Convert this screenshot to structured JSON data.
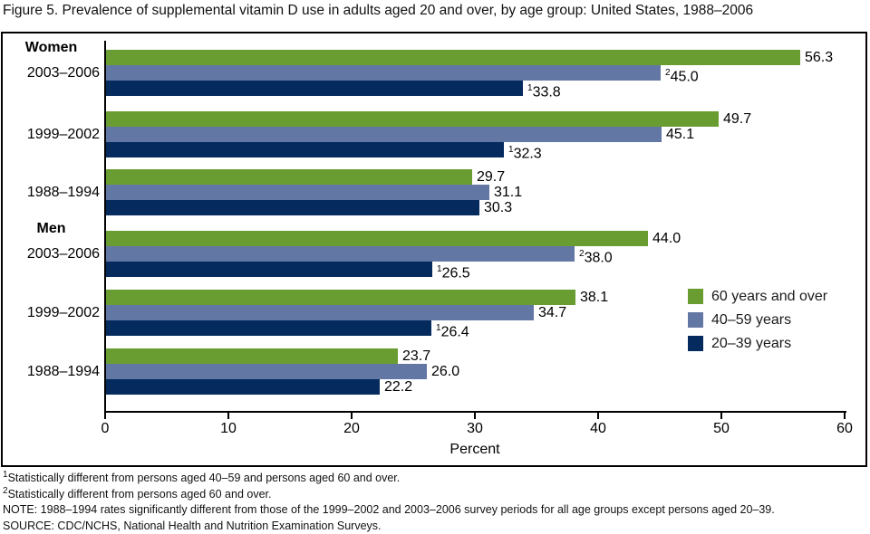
{
  "title": "Figure 5. Prevalence of supplemental vitamin D use in adults aged 20 and over, by age group: United States, 1988–2006",
  "chart_data": {
    "type": "bar",
    "orientation": "horizontal",
    "title": "Figure 5. Prevalence of supplemental vitamin D use in adults aged 20 and over, by age group: United States, 1988–2006",
    "xlabel": "Percent",
    "xlim": [
      0,
      60
    ],
    "xticks": [
      0,
      10,
      20,
      30,
      40,
      50,
      60
    ],
    "grid": false,
    "legend_position": "right-middle",
    "series_legend": [
      {
        "name": "60 years and over",
        "color": "#6a9d31"
      },
      {
        "name": "40–59 years",
        "color": "#6377a4"
      },
      {
        "name": "20–39 years",
        "color": "#042a5e"
      }
    ],
    "groups": [
      {
        "section": "Women",
        "period": "2003–2006",
        "bars": [
          {
            "series": "60 years and over",
            "value": 56.3,
            "label": "56.3",
            "sup": ""
          },
          {
            "series": "40–59 years",
            "value": 45.0,
            "label": "45.0",
            "sup": "2"
          },
          {
            "series": "20–39 years",
            "value": 33.8,
            "label": "33.8",
            "sup": "1"
          }
        ]
      },
      {
        "section": "",
        "period": "1999–2002",
        "bars": [
          {
            "series": "60 years and over",
            "value": 49.7,
            "label": "49.7",
            "sup": ""
          },
          {
            "series": "40–59 years",
            "value": 45.1,
            "label": "45.1",
            "sup": ""
          },
          {
            "series": "20–39 years",
            "value": 32.3,
            "label": "32.3",
            "sup": "1"
          }
        ]
      },
      {
        "section": "",
        "period": "1988–1994",
        "bars": [
          {
            "series": "60 years and over",
            "value": 29.7,
            "label": "29.7",
            "sup": ""
          },
          {
            "series": "40–59 years",
            "value": 31.1,
            "label": "31.1",
            "sup": ""
          },
          {
            "series": "20–39 years",
            "value": 30.3,
            "label": "30.3",
            "sup": ""
          }
        ]
      },
      {
        "section": "Men",
        "period": "2003–2006",
        "bars": [
          {
            "series": "60 years and over",
            "value": 44.0,
            "label": "44.0",
            "sup": ""
          },
          {
            "series": "40–59 years",
            "value": 38.0,
            "label": "38.0",
            "sup": "2"
          },
          {
            "series": "20–39 years",
            "value": 26.5,
            "label": "26.5",
            "sup": "1"
          }
        ]
      },
      {
        "section": "",
        "period": "1999–2002",
        "bars": [
          {
            "series": "60 years and over",
            "value": 38.1,
            "label": "38.1",
            "sup": ""
          },
          {
            "series": "40–59 years",
            "value": 34.7,
            "label": "34.7",
            "sup": ""
          },
          {
            "series": "20–39 years",
            "value": 26.4,
            "label": "26.4",
            "sup": "1"
          }
        ]
      },
      {
        "section": "",
        "period": "1988–1994",
        "bars": [
          {
            "series": "60 years and over",
            "value": 23.7,
            "label": "23.7",
            "sup": ""
          },
          {
            "series": "40–59 years",
            "value": 26.0,
            "label": "26.0",
            "sup": ""
          },
          {
            "series": "20–39 years",
            "value": 22.2,
            "label": "22.2",
            "sup": ""
          }
        ]
      }
    ]
  },
  "footnotes": [
    {
      "sup": "1",
      "text": "Statistically different from persons aged 40–59 and persons aged 60 and over."
    },
    {
      "sup": "2",
      "text": "Statistically different from persons aged 60 and over."
    },
    {
      "sup": "",
      "text": "NOTE: 1988–1994 rates significantly different from those of the 1999–2002 and 2003–2006 survey periods for all age groups except persons aged 20–39."
    },
    {
      "sup": "",
      "text": "SOURCE: CDC/NCHS, National Health and Nutrition Examination Surveys."
    }
  ]
}
